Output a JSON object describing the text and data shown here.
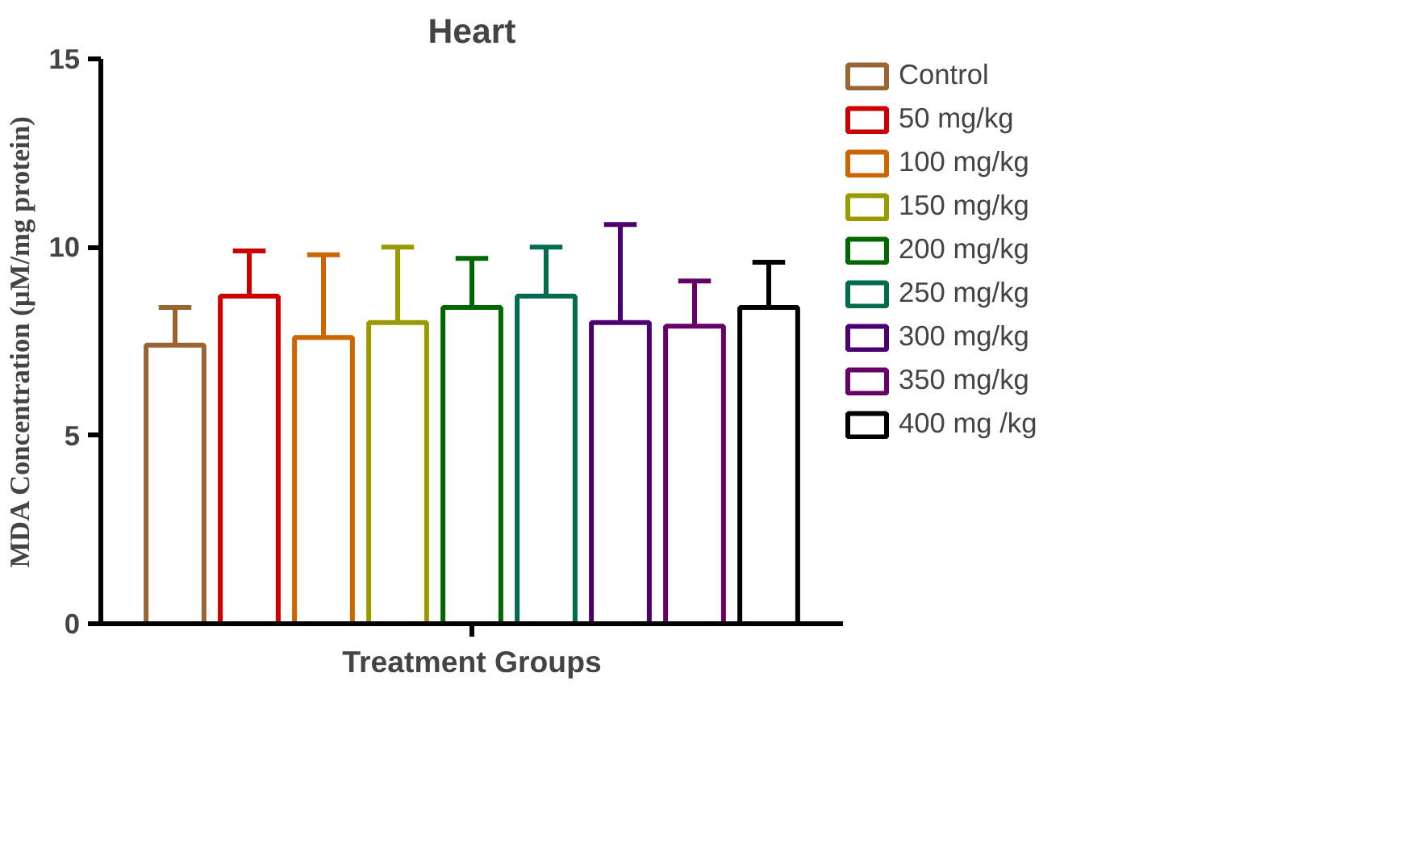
{
  "chart_data": {
    "type": "bar",
    "title": "Heart",
    "xlabel": "Treatment Groups",
    "ylabel": "MDA Concentration (µM/mg protein)",
    "categories": [
      null
    ],
    "series": [
      {
        "name": "Control",
        "color": "#996633",
        "values": [
          7.4
        ],
        "errors": [
          [
            7.4,
            8.4
          ]
        ]
      },
      {
        "name": "50 mg/kg",
        "color": "#cc0000",
        "values": [
          8.7
        ],
        "errors": [
          [
            8.7,
            9.9
          ]
        ]
      },
      {
        "name": "100 mg/kg",
        "color": "#cc6600",
        "values": [
          7.6
        ],
        "errors": [
          [
            7.6,
            9.8
          ]
        ]
      },
      {
        "name": "150 mg/kg",
        "color": "#999900",
        "values": [
          8.0
        ],
        "errors": [
          [
            8.0,
            10.0
          ]
        ]
      },
      {
        "name": "200 mg/kg",
        "color": "#006600",
        "values": [
          8.4
        ],
        "errors": [
          [
            8.4,
            9.7
          ]
        ]
      },
      {
        "name": "250 mg/kg",
        "color": "#006b4f",
        "values": [
          8.7
        ],
        "errors": [
          [
            8.7,
            10.0
          ]
        ]
      },
      {
        "name": "300 mg/kg",
        "color": "#4b0070",
        "values": [
          8.0
        ],
        "errors": [
          [
            8.0,
            10.6
          ]
        ]
      },
      {
        "name": "350 mg/kg",
        "color": "#660066",
        "values": [
          7.9
        ],
        "errors": [
          [
            7.9,
            9.1
          ]
        ]
      },
      {
        "name": "400 mg /kg",
        "color": "#000000",
        "values": [
          8.4
        ],
        "errors": [
          [
            8.4,
            9.6
          ]
        ]
      }
    ],
    "ylim": [
      0,
      15
    ],
    "yticks": [
      0,
      5,
      10,
      15
    ],
    "grid": false,
    "legend": "right"
  }
}
